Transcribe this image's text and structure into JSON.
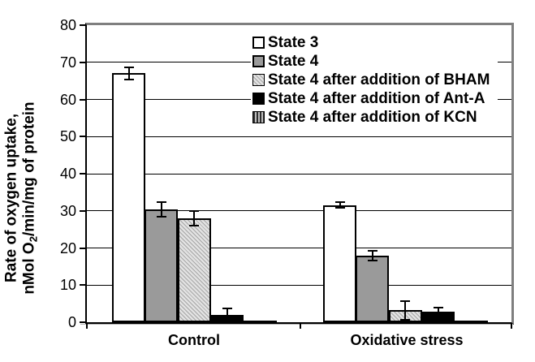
{
  "chart_data": {
    "type": "bar",
    "title": "",
    "ylabel_line1": "Rate of oxygen uptake,",
    "ylabel_line2_pre": "nMol O",
    "ylabel_sub": "2",
    "ylabel_line2_post": "/min/mg of protein",
    "categories": [
      "Control",
      "Oxidative stress"
    ],
    "ylim": [
      0,
      80
    ],
    "yticks": [
      0,
      10,
      20,
      30,
      40,
      50,
      60,
      70,
      80
    ],
    "grid": "horizontal gridlines every 10, black; top and right plot border gray",
    "legend_position": "top-right inside plot, no border, opaque white background",
    "series": [
      {
        "name": "State 3",
        "pattern": "white",
        "values": [
          67.0,
          31.5
        ],
        "errors": [
          1.8,
          1.0
        ]
      },
      {
        "name": "State 4",
        "pattern": "gray",
        "values": [
          30.3,
          18.0
        ],
        "errors": [
          2.2,
          1.5
        ]
      },
      {
        "name": "State 4 after addition of BHAM",
        "pattern": "dots",
        "values": [
          28.0,
          3.2
        ],
        "errors": [
          2.2,
          2.8
        ]
      },
      {
        "name": "State 4 after addition of Ant-A",
        "pattern": "black",
        "values": [
          2.0,
          2.9
        ],
        "errors": [
          1.9,
          1.2
        ]
      },
      {
        "name": "State 4 after addition of KCN",
        "pattern": "vstripes",
        "values": [
          0.5,
          0.5
        ],
        "errors": [
          0,
          0
        ]
      }
    ],
    "colors": {
      "bar_gray": "#9a9a9a",
      "hatch_light_bg": "#e2e2e2",
      "hatch_light_line": "#a6a6a6",
      "stripe_bg": "#bdbdbd",
      "stripe_line": "#2e2e2e",
      "plot_border_gray": "#7f7f7f",
      "axis_black": "#000000",
      "background": "#ffffff"
    }
  }
}
